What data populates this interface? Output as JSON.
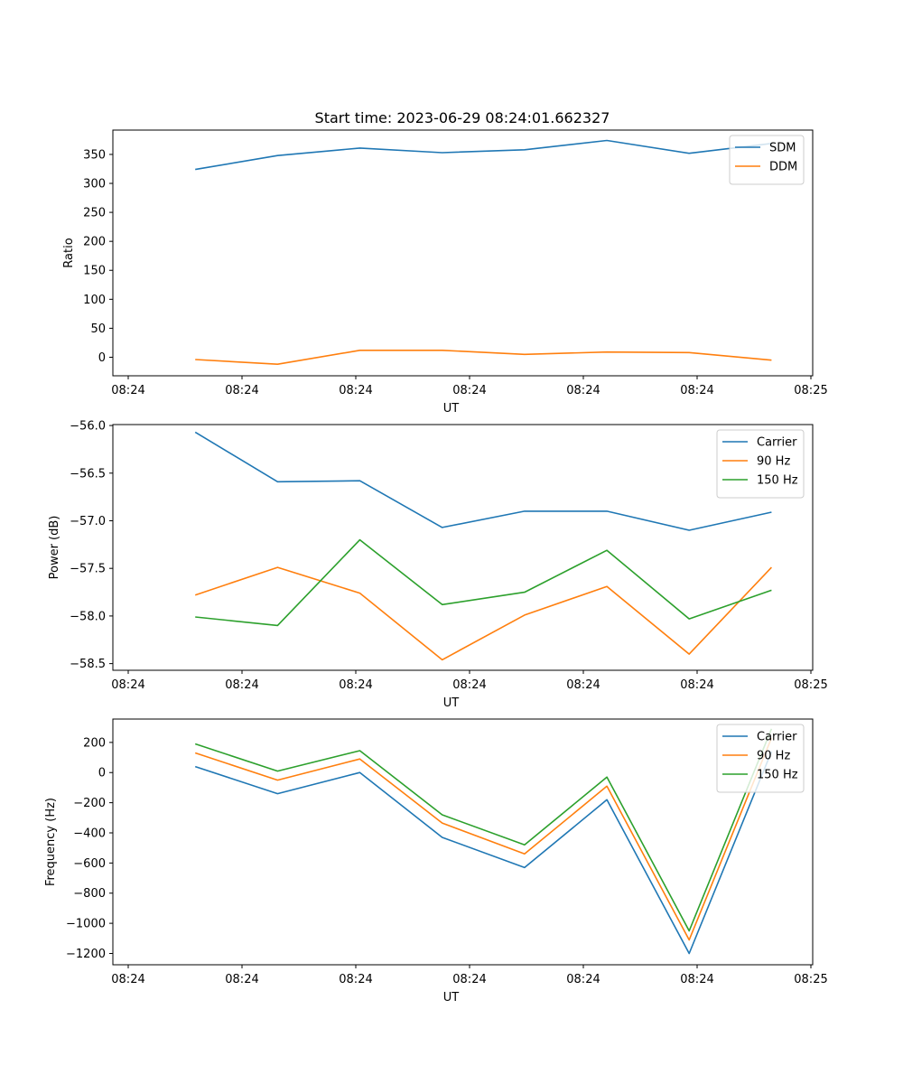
{
  "figure_title": "Start time: 2023-06-29 08:24:01.662327",
  "chart_data": [
    {
      "type": "line",
      "title": "Start time: 2023-06-29 08:24:01.662327",
      "xlabel": "UT",
      "ylabel": "Ratio",
      "x": [
        "08:24:02.5",
        "08:24:03.5",
        "08:24:04.5",
        "08:24:05.5",
        "08:24:06.5",
        "08:24:07.5",
        "08:24:08.5",
        "08:24:09.5"
      ],
      "xlim": [
        "08:24:01.5",
        "08:24:10.0"
      ],
      "xticks": [
        "08:24",
        "08:24",
        "08:24",
        "08:24",
        "08:24",
        "08:24",
        "08:25"
      ],
      "ylim": [
        -32,
        392
      ],
      "yticks": [
        "0",
        "50",
        "100",
        "150",
        "200",
        "250",
        "300",
        "350"
      ],
      "legend_position": "top-right",
      "series": [
        {
          "name": "SDM",
          "color": "#1f77b4",
          "values": [
            324,
            348,
            361,
            353,
            358,
            374,
            352,
            369
          ]
        },
        {
          "name": "DDM",
          "color": "#ff7f0e",
          "values": [
            -4,
            -12,
            12,
            12,
            5,
            9,
            8,
            -5
          ]
        }
      ]
    },
    {
      "type": "line",
      "xlabel": "UT",
      "ylabel": "Power (dB)",
      "x": [
        "08:24:02.5",
        "08:24:03.5",
        "08:24:04.5",
        "08:24:05.5",
        "08:24:06.5",
        "08:24:07.5",
        "08:24:08.5",
        "08:24:09.5"
      ],
      "xlim": [
        "08:24:01.5",
        "08:24:10.0"
      ],
      "xticks": [
        "08:24",
        "08:24",
        "08:24",
        "08:24",
        "08:24",
        "08:24",
        "08:25"
      ],
      "ylim": [
        -58.57,
        -55.99
      ],
      "yticks": [
        "-58.5",
        "-58.0",
        "-57.5",
        "-57.0",
        "-56.5",
        "-56.0"
      ],
      "legend_position": "top-right",
      "series": [
        {
          "name": "Carrier",
          "color": "#1f77b4",
          "values": [
            -56.07,
            -56.59,
            -56.58,
            -57.07,
            -56.9,
            -56.9,
            -57.1,
            -56.91
          ]
        },
        {
          "name": "90 Hz",
          "color": "#ff7f0e",
          "values": [
            -57.78,
            -57.49,
            -57.76,
            -58.46,
            -57.99,
            -57.69,
            -58.4,
            -57.49
          ]
        },
        {
          "name": "150 Hz",
          "color": "#2ca02c",
          "values": [
            -58.01,
            -58.1,
            -57.2,
            -57.88,
            -57.75,
            -57.31,
            -58.03,
            -57.73
          ]
        }
      ]
    },
    {
      "type": "line",
      "xlabel": "UT",
      "ylabel": "Frequency (Hz)",
      "x": [
        "08:24:02.5",
        "08:24:03.5",
        "08:24:04.5",
        "08:24:05.5",
        "08:24:06.5",
        "08:24:07.5",
        "08:24:08.5",
        "08:24:09.5"
      ],
      "xlim": [
        "08:24:01.5",
        "08:24:10.0"
      ],
      "xticks": [
        "08:24",
        "08:24",
        "08:24",
        "08:24",
        "08:24",
        "08:24",
        "08:25"
      ],
      "ylim": [
        -1275,
        355
      ],
      "yticks": [
        "-1200",
        "-1000",
        "-800",
        "-600",
        "-400",
        "-200",
        "0",
        "200"
      ],
      "legend_position": "top-right",
      "series": [
        {
          "name": "Carrier",
          "color": "#1f77b4",
          "values": [
            40,
            -140,
            0,
            -430,
            -630,
            -180,
            -1200,
            140
          ]
        },
        {
          "name": "90 Hz",
          "color": "#ff7f0e",
          "values": [
            130,
            -50,
            90,
            -335,
            -540,
            -90,
            -1110,
            230
          ]
        },
        {
          "name": "150 Hz",
          "color": "#2ca02c",
          "values": [
            190,
            10,
            145,
            -280,
            -480,
            -30,
            -1050,
            290
          ]
        }
      ]
    }
  ]
}
